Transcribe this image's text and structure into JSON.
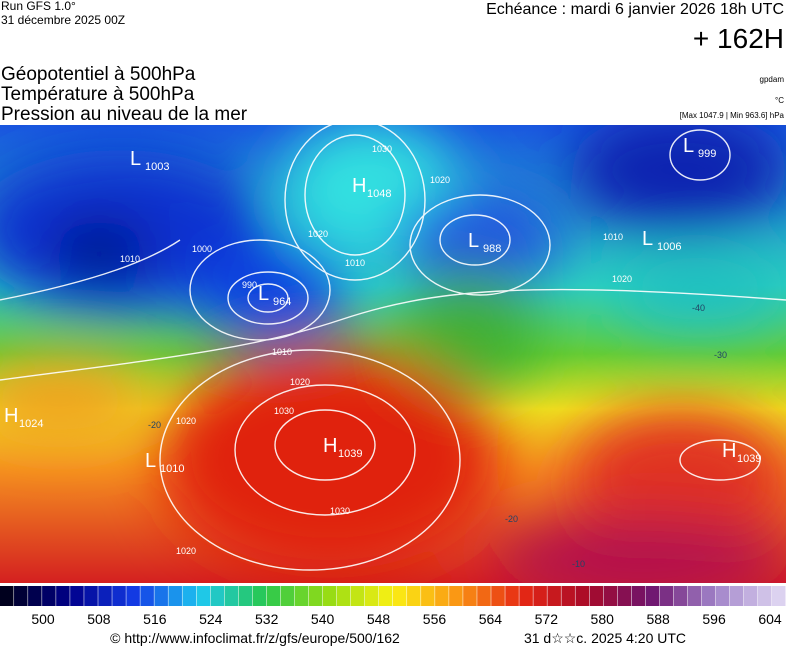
{
  "header": {
    "run": "Run GFS 1.0°",
    "run_date": "31 décembre 2025 00Z",
    "valid": "Echéance : mardi 6 janvier 2026 18h UTC",
    "lead": "+ 162H",
    "fields": [
      "Géopotentiel à 500hPa",
      "Température à 500hPa",
      "Pression au niveau de la mer"
    ],
    "units": [
      "gpdam",
      "°C",
      "[Max 1047.9 | Min 963.6] hPa"
    ]
  },
  "centers": [
    {
      "letter": "L",
      "value": 1003
    },
    {
      "letter": "H",
      "value": 1048
    },
    {
      "letter": "L",
      "value": 964
    },
    {
      "letter": "L",
      "value": 988
    },
    {
      "letter": "L",
      "value": 1006
    },
    {
      "letter": "L",
      "value": 999
    },
    {
      "letter": "H",
      "value": 1024
    },
    {
      "letter": "L",
      "value": 1010
    },
    {
      "letter": "H",
      "value": 1039
    },
    {
      "letter": "H",
      "value": 1039
    }
  ],
  "contour_labels": [
    "1010",
    "1000",
    "990",
    "1020",
    "1030",
    "1010",
    "1020",
    "1010",
    "1020",
    "1010",
    "1020",
    "1030",
    "1020",
    "1030",
    "1020",
    "-40",
    "-30",
    "-20",
    "-20",
    "-10"
  ],
  "colorbar": {
    "labels": [
      500,
      508,
      516,
      524,
      532,
      540,
      548,
      556,
      564,
      572,
      580,
      588,
      596,
      604
    ]
  },
  "footer": {
    "source": "© http://www.infoclimat.fr/z/gfs/europe/500/162",
    "generated": "31 d☆☆c. 2025  4:20 UTC"
  }
}
